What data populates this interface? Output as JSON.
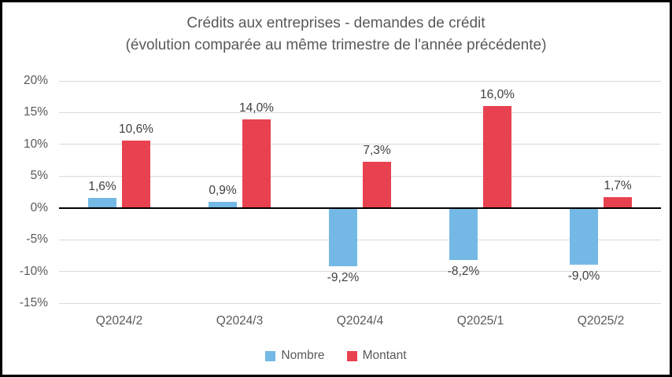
{
  "chart_data": {
    "type": "bar",
    "title": "Crédits aux entreprises - demandes de crédit",
    "subtitle": "(évolution comparée au même trimestre de l'année précédente)",
    "categories": [
      "Q2024/2",
      "Q2024/3",
      "Q2024/4",
      "Q2025/1",
      "Q2025/2"
    ],
    "series": [
      {
        "name": "Nombre",
        "color": "#74B9E5",
        "values": [
          1.6,
          0.9,
          -9.2,
          -8.2,
          -9.0
        ],
        "labels": [
          "1,6%",
          "0,9%",
          "-9,2%",
          "-8,2%",
          "-9,0%"
        ]
      },
      {
        "name": "Montant",
        "color": "#E8414F",
        "values": [
          10.6,
          14.0,
          7.3,
          16.0,
          1.7
        ],
        "labels": [
          "10,6%",
          "14,0%",
          "7,3%",
          "16,0%",
          "1,7%"
        ]
      }
    ],
    "ylim": [
      -15,
      20
    ],
    "ytick_step": 5,
    "ytick_labels": [
      "20%",
      "15%",
      "10%",
      "5%",
      "0%",
      "-5%",
      "-10%",
      "-15%"
    ],
    "grid": true,
    "legend_position": "bottom",
    "colors": {
      "gridline": "#D9D9D9",
      "zero_axis": "#000000",
      "title_text": "#595959",
      "tick_text": "#595959",
      "data_label_text": "#404040",
      "frame_border": "#000000",
      "background": "#FFFFFF"
    }
  }
}
